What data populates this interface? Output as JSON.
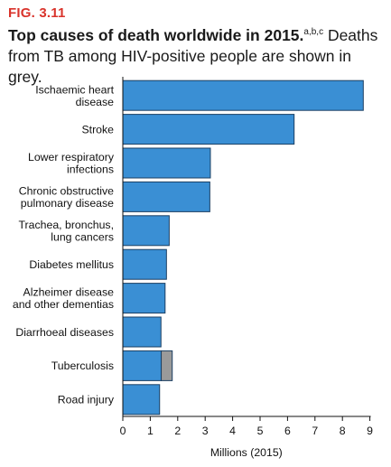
{
  "figure_label": "FIG. 3.11",
  "title_bold": "Top causes of death worldwide in 2015.",
  "title_sup": "a,b,c",
  "title_rest": " Deaths from TB among HIV-positive people are shown in grey.",
  "colors": {
    "bar": "#3a8fd4",
    "bar_stroke": "#1b3f63",
    "grey": "#9a9a9a",
    "fig_label": "#d9332b"
  },
  "chart_data": {
    "type": "bar",
    "orientation": "horizontal",
    "stacked": true,
    "categories": [
      [
        "Ischaemic heart",
        "disease"
      ],
      [
        "Stroke"
      ],
      [
        "Lower respiratory",
        "infections"
      ],
      [
        "Chronic obstructive",
        "pulmonary disease"
      ],
      [
        "Trachea, bronchus,",
        "lung cancers"
      ],
      [
        "Diabetes mellitus"
      ],
      [
        "Alzheimer disease",
        "and other dementias"
      ],
      [
        "Diarrhoeal diseases"
      ],
      [
        "Tuberculosis"
      ],
      [
        "Road injury"
      ]
    ],
    "series": [
      {
        "values": [
          8.76,
          6.24,
          3.19,
          3.17,
          1.69,
          1.59,
          1.54,
          1.39,
          1.4,
          1.34
        ]
      },
      {
        "values": [
          0,
          0,
          0,
          0,
          0,
          0,
          0,
          0,
          0.4,
          0
        ]
      }
    ],
    "xticks": [
      "0",
      "1",
      "2",
      "3",
      "4",
      "5",
      "6",
      "7",
      "8",
      "9"
    ],
    "xlim": [
      0,
      9
    ],
    "xlabel": "Millions (2015)",
    "grid": false,
    "legend": "none"
  }
}
